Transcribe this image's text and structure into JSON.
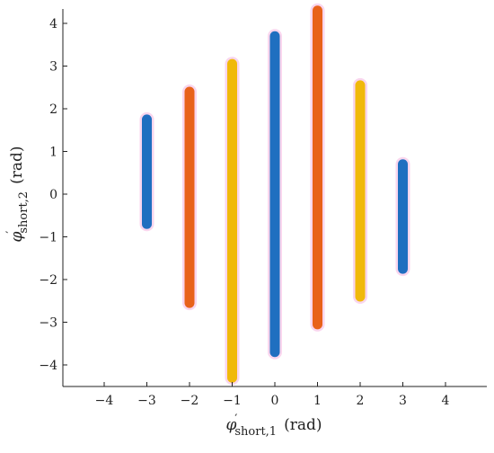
{
  "chart_data": {
    "type": "scatter",
    "title": "",
    "xlabel": {
      "symbol": "φ",
      "prime": "′",
      "subscript": "short,1",
      "unit": "(rad)"
    },
    "ylabel": {
      "symbol": "φ",
      "prime": "′",
      "subscript": "short,2",
      "unit": "(rad)"
    },
    "xlim": [
      -5,
      5
    ],
    "ylim": [
      -4.5,
      4.3
    ],
    "xticks": [
      -4,
      -3,
      -2,
      -1,
      0,
      1,
      2,
      3,
      4
    ],
    "xtick_labels": [
      "−4",
      "−3",
      "−2",
      "−1",
      "0",
      "1",
      "2",
      "3",
      "4"
    ],
    "yticks": [
      -4,
      -3,
      -2,
      -1,
      0,
      1,
      2,
      3,
      4
    ],
    "ytick_labels": [
      "−4",
      "−3",
      "−2",
      "−1",
      "0",
      "1",
      "2",
      "3",
      "4"
    ],
    "grid": false,
    "legend": "none",
    "colors": {
      "blue": "#1f6fc0",
      "orange": "#e8621a",
      "yellow": "#f0b90b",
      "halo": "#f7c6e8"
    },
    "segments": [
      {
        "x": -3,
        "y_min": -0.7,
        "y_max": 1.75,
        "color": "blue"
      },
      {
        "x": -2,
        "y_min": -2.55,
        "y_max": 2.4,
        "color": "orange"
      },
      {
        "x": -1,
        "y_min": -4.3,
        "y_max": 3.05,
        "color": "yellow"
      },
      {
        "x": 0,
        "y_min": -3.7,
        "y_max": 3.7,
        "color": "blue"
      },
      {
        "x": 1,
        "y_min": -3.05,
        "y_max": 4.3,
        "color": "orange"
      },
      {
        "x": 2,
        "y_min": -2.4,
        "y_max": 2.55,
        "color": "yellow"
      },
      {
        "x": 3,
        "y_min": -1.75,
        "y_max": 0.7,
        "color": "blue"
      }
    ]
  }
}
